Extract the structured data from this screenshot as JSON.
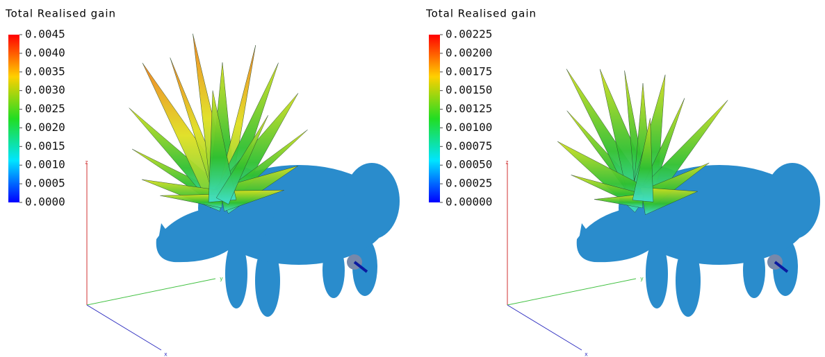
{
  "panels": [
    {
      "title": "Total Realised gain",
      "colorbar": {
        "ylim": [
          0,
          0.0045
        ],
        "ticks": [
          0.0045,
          {
            "value": 0.004,
            "label": "0.0040"
          },
          0.0035,
          {
            "value": 0.003,
            "label": "0.0030"
          },
          0.0025,
          {
            "value": 0.002,
            "label": "0.0020"
          },
          0.0015,
          {
            "value": 0.001,
            "label": "0.0010"
          },
          0.0005,
          {
            "value": 0,
            "label": "0.0000"
          }
        ]
      },
      "axes": {
        "z": "z",
        "y": "y",
        "x": "x"
      }
    },
    {
      "title": "Total Realised gain",
      "colorbar": {
        "ylim": [
          0,
          0.00225
        ],
        "ticks": [
          0.00225,
          {
            "value": 0.002,
            "label": "0.00200"
          },
          0.00175,
          {
            "value": 0.0015,
            "label": "0.00150"
          },
          0.00125,
          {
            "value": 0.001,
            "label": "0.00100"
          },
          0.00075,
          {
            "value": 0.0005,
            "label": "0.00050"
          },
          0.00025,
          {
            "value": 0,
            "label": "0.00000"
          }
        ]
      },
      "axes": {
        "z": "z",
        "y": "y",
        "x": "x"
      }
    }
  ]
}
